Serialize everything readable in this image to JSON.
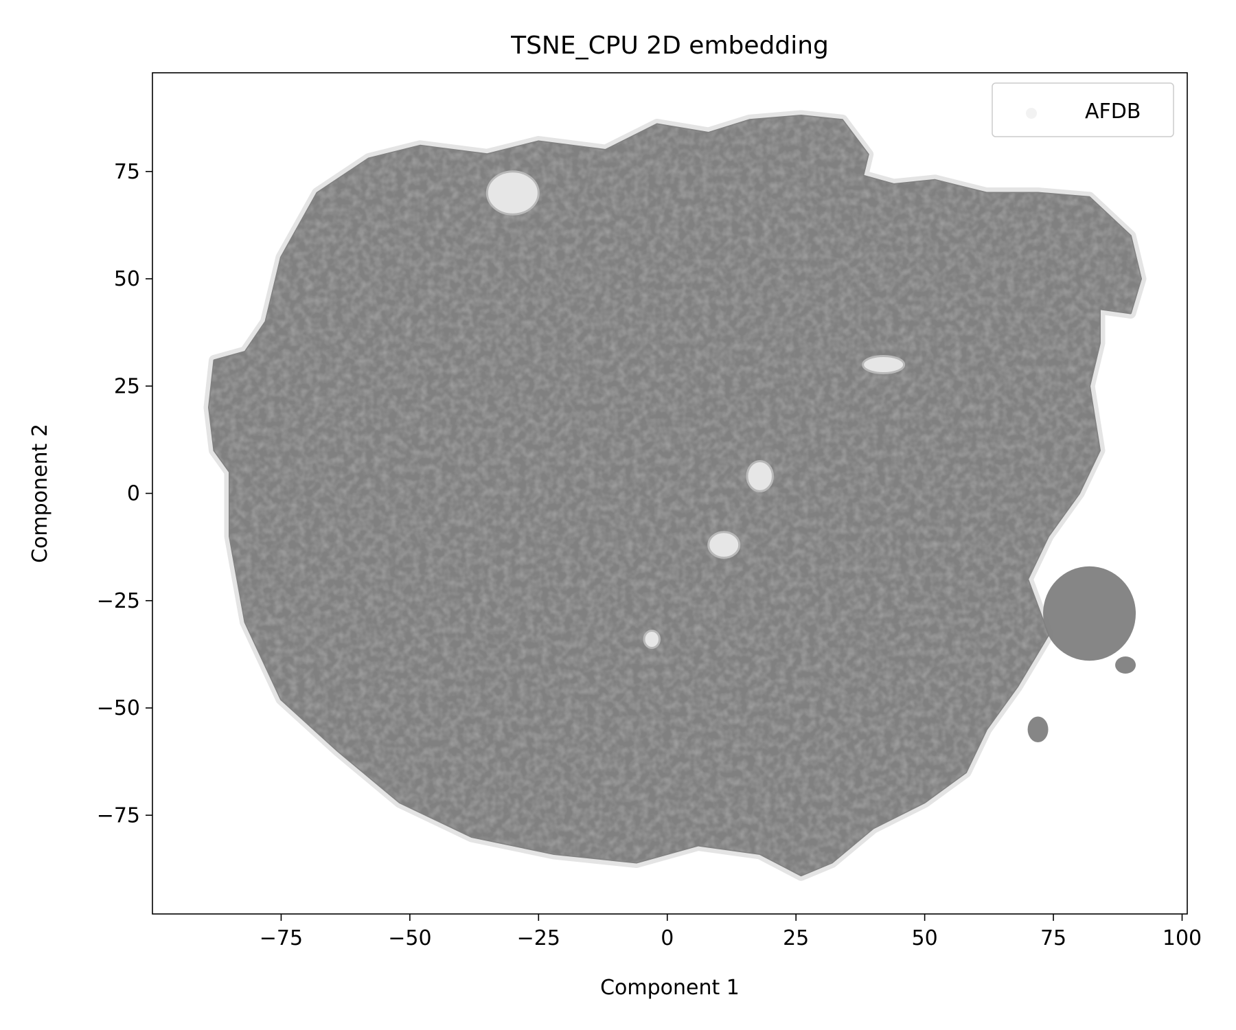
{
  "chart_data": {
    "type": "scatter",
    "title": "TSNE_CPU 2D embedding",
    "xlabel": "Component 1",
    "ylabel": "Component 2",
    "xlim": [
      -100,
      101
    ],
    "ylim": [
      -98,
      98
    ],
    "xticks": [
      -75,
      -50,
      -25,
      0,
      25,
      50,
      75,
      100
    ],
    "xtick_labels": [
      "−75",
      "−50",
      "−25",
      "0",
      "25",
      "50",
      "75",
      "100"
    ],
    "yticks": [
      75,
      50,
      25,
      0,
      -25,
      -50,
      -75
    ],
    "ytick_labels": [
      "75",
      "50",
      "25",
      "0",
      "−25",
      "−50",
      "−75"
    ],
    "grid": false,
    "legend_position": "top-right",
    "series": [
      {
        "name": "AFDB",
        "color": "#808080",
        "marker": "point",
        "alpha": 0.1
      }
    ],
    "region_outline": {
      "description_points": [
        [
          -89,
          20
        ],
        [
          -88,
          31
        ],
        [
          -82,
          33
        ],
        [
          -78,
          40
        ],
        [
          -75,
          55
        ],
        [
          -68,
          70
        ],
        [
          -58,
          78
        ],
        [
          -48,
          81
        ],
        [
          -35,
          79
        ],
        [
          -25,
          82
        ],
        [
          -12,
          80
        ],
        [
          -2,
          86
        ],
        [
          8,
          84
        ],
        [
          16,
          87
        ],
        [
          26,
          88
        ],
        [
          34,
          87
        ],
        [
          39,
          79
        ],
        [
          38,
          74
        ],
        [
          44,
          72
        ],
        [
          52,
          73
        ],
        [
          62,
          70
        ],
        [
          72,
          70
        ],
        [
          82,
          69
        ],
        [
          90,
          60
        ],
        [
          92,
          50
        ],
        [
          90,
          42
        ],
        [
          84,
          43
        ],
        [
          84,
          35
        ],
        [
          82,
          25
        ],
        [
          84,
          10
        ],
        [
          80,
          0
        ],
        [
          74,
          -10
        ],
        [
          70,
          -20
        ],
        [
          74,
          -33
        ],
        [
          68,
          -45
        ],
        [
          62,
          -55
        ],
        [
          58,
          -65
        ],
        [
          50,
          -72
        ],
        [
          40,
          -78
        ],
        [
          32,
          -86
        ],
        [
          26,
          -89
        ],
        [
          18,
          -84
        ],
        [
          6,
          -82
        ],
        [
          -6,
          -86
        ],
        [
          -22,
          -84
        ],
        [
          -38,
          -80
        ],
        [
          -52,
          -72
        ],
        [
          -64,
          -60
        ],
        [
          -75,
          -48
        ],
        [
          -82,
          -30
        ],
        [
          -85,
          -10
        ],
        [
          -85,
          5
        ],
        [
          -88,
          10
        ]
      ]
    },
    "satellite_clusters": [
      {
        "center": [
          82,
          -28
        ],
        "rx": 9,
        "ry": 11
      },
      {
        "center": [
          72,
          -55
        ],
        "rx": 2,
        "ry": 3
      },
      {
        "center": [
          89,
          -40
        ],
        "rx": 2,
        "ry": 2
      }
    ],
    "visible_holes": [
      {
        "center": [
          18,
          4
        ],
        "rx": 2.5,
        "ry": 3.5
      },
      {
        "center": [
          11,
          -12
        ],
        "rx": 3,
        "ry": 3
      },
      {
        "center": [
          -3,
          -34
        ],
        "rx": 1.5,
        "ry": 2
      },
      {
        "center": [
          -30,
          70
        ],
        "rx": 5,
        "ry": 5
      },
      {
        "center": [
          42,
          30
        ],
        "rx": 4,
        "ry": 2
      }
    ]
  }
}
